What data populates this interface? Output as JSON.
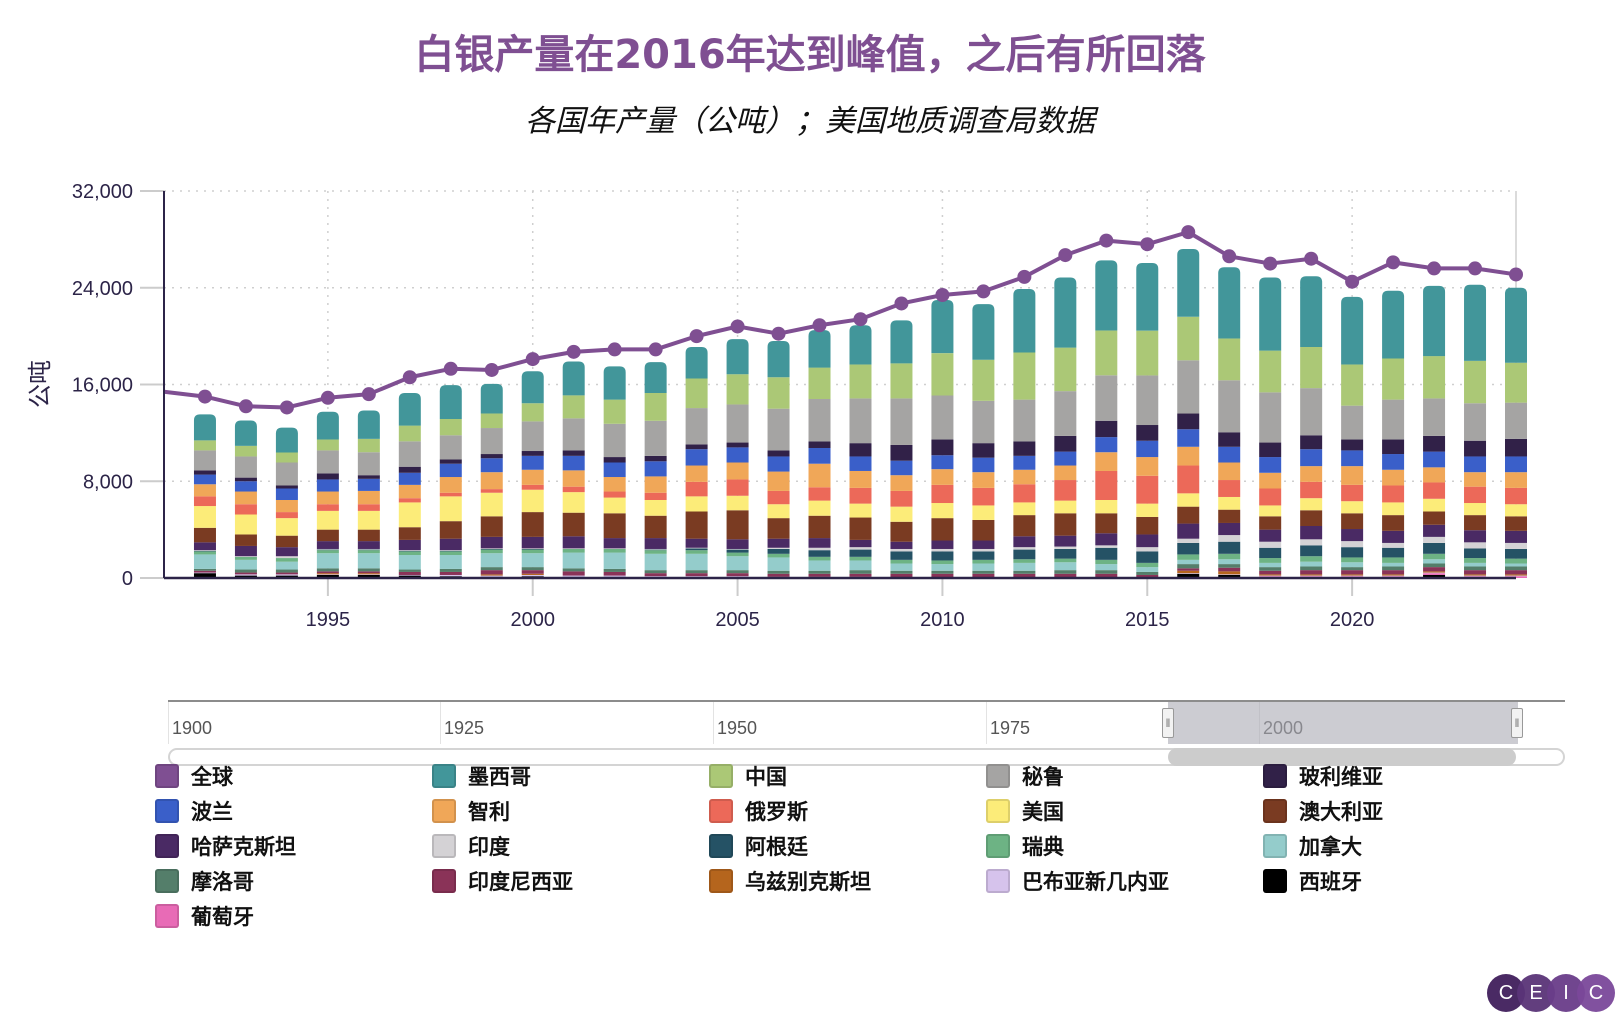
{
  "header": {
    "title": "白银产量在2016年达到峰值，之后有所回落",
    "subtitle": "各国年产量（公吨）；美国地质调查局数据"
  },
  "navigator": {
    "labels": [
      "1900",
      "1925",
      "1950",
      "1975",
      "2000"
    ],
    "range_start": "1991",
    "range_end": "2024"
  },
  "logo": {
    "letters": [
      "C",
      "E",
      "I",
      "C"
    ]
  },
  "chart_data": {
    "type": "bar",
    "stacked": true,
    "title": "白银产量在2016年达到峰值，之后有所回落",
    "subtitle": "各国年产量（公吨）；美国地质调查局数据",
    "xlabel": "",
    "ylabel": "公吨",
    "ylim": [
      0,
      32000
    ],
    "yticks": [
      0,
      8000,
      16000,
      24000,
      32000
    ],
    "ytick_labels": [
      "0",
      "8,000",
      "16,000",
      "24,000",
      "32,000"
    ],
    "xlim": [
      1991,
      2024
    ],
    "xticks": [
      1995,
      2000,
      2005,
      2010,
      2015,
      2020
    ],
    "xtick_labels": [
      "1995",
      "2000",
      "2005",
      "2010",
      "2015",
      "2020"
    ],
    "grid": true,
    "legend_position": "bottom",
    "categories": [
      1992,
      1993,
      1994,
      1995,
      1996,
      1997,
      1998,
      1999,
      2000,
      2001,
      2002,
      2003,
      2004,
      2005,
      2006,
      2007,
      2008,
      2009,
      2010,
      2011,
      2012,
      2013,
      2014,
      2015,
      2016,
      2017,
      2018,
      2019,
      2020,
      2021,
      2022,
      2023,
      2024
    ],
    "line_series": {
      "name": "全球",
      "color": "#7f4f92",
      "x": [
        1991,
        1992,
        1993,
        1994,
        1995,
        1996,
        1997,
        1998,
        1999,
        2000,
        2001,
        2002,
        2003,
        2004,
        2005,
        2006,
        2007,
        2008,
        2009,
        2010,
        2011,
        2012,
        2013,
        2014,
        2015,
        2016,
        2017,
        2018,
        2019,
        2020,
        2021,
        2022,
        2023,
        2024
      ],
      "values": [
        15400,
        15000,
        14200,
        14100,
        14900,
        15200,
        16600,
        17300,
        17200,
        18100,
        18700,
        18900,
        18900,
        20000,
        20800,
        20200,
        20900,
        21400,
        22700,
        23400,
        23700,
        24900,
        26700,
        27900,
        27600,
        28600,
        26600,
        26000,
        26400,
        24500,
        26100,
        25600,
        25600,
        25100
      ]
    },
    "series": [
      {
        "name": "西班牙",
        "color": "#000000",
        "values": [
          400,
          200,
          200,
          250,
          250,
          200,
          150,
          100,
          150,
          100,
          100,
          50,
          50,
          50,
          0,
          0,
          0,
          0,
          0,
          0,
          0,
          0,
          0,
          0,
          350,
          250,
          0,
          0,
          0,
          0,
          250,
          0,
          0
        ]
      },
      {
        "name": "葡萄牙",
        "color": "#e86bb6",
        "values": [
          0,
          0,
          0,
          0,
          0,
          0,
          0,
          0,
          0,
          0,
          0,
          0,
          0,
          0,
          0,
          0,
          0,
          0,
          0,
          0,
          0,
          0,
          0,
          0,
          0,
          0,
          150,
          150,
          150,
          150,
          150,
          150,
          150
        ]
      },
      {
        "name": "巴布亚新几内亚",
        "color": "#d6c3ec",
        "values": [
          50,
          100,
          100,
          50,
          50,
          50,
          100,
          100,
          100,
          100,
          100,
          100,
          100,
          100,
          100,
          100,
          100,
          50,
          50,
          50,
          50,
          50,
          50,
          50,
          50,
          50,
          50,
          50,
          50,
          50,
          50,
          50,
          50
        ]
      },
      {
        "name": "乌兹别克斯坦",
        "color": "#b5651d",
        "values": [
          0,
          0,
          0,
          100,
          100,
          0,
          0,
          100,
          100,
          0,
          0,
          0,
          0,
          0,
          0,
          0,
          0,
          0,
          0,
          0,
          0,
          0,
          0,
          0,
          200,
          250,
          100,
          100,
          100,
          100,
          100,
          100,
          100
        ]
      },
      {
        "name": "印度尼西亚",
        "color": "#8a3358",
        "values": [
          150,
          150,
          150,
          150,
          150,
          250,
          250,
          350,
          300,
          350,
          300,
          250,
          250,
          250,
          250,
          250,
          250,
          300,
          300,
          300,
          300,
          300,
          300,
          200,
          200,
          300,
          300,
          350,
          350,
          350,
          350,
          350,
          350
        ]
      },
      {
        "name": "摩洛哥",
        "color": "#547e6a",
        "values": [
          150,
          250,
          250,
          250,
          250,
          200,
          250,
          250,
          250,
          250,
          250,
          250,
          250,
          250,
          250,
          250,
          300,
          250,
          250,
          250,
          250,
          300,
          300,
          250,
          350,
          300,
          300,
          300,
          250,
          300,
          300,
          300,
          300
        ]
      },
      {
        "name": "加拿大",
        "color": "#94cccb",
        "values": [
          1200,
          800,
          650,
          1250,
          1250,
          1200,
          1150,
          1150,
          1150,
          1300,
          1350,
          1350,
          1350,
          1150,
          1100,
          850,
          800,
          600,
          550,
          600,
          650,
          650,
          500,
          400,
          350,
          400,
          350,
          400,
          400,
          300,
          350,
          300,
          250
        ]
      },
      {
        "name": "瑞典",
        "color": "#6db384",
        "values": [
          250,
          250,
          300,
          250,
          250,
          300,
          300,
          300,
          300,
          300,
          300,
          300,
          300,
          300,
          300,
          300,
          300,
          300,
          300,
          300,
          300,
          300,
          350,
          350,
          450,
          450,
          400,
          450,
          400,
          450,
          450,
          400,
          400
        ]
      },
      {
        "name": "阿根廷",
        "color": "#255265",
        "values": [
          50,
          0,
          0,
          50,
          50,
          50,
          50,
          50,
          50,
          0,
          0,
          50,
          150,
          250,
          400,
          550,
          600,
          700,
          750,
          700,
          800,
          800,
          1000,
          950,
          950,
          1000,
          850,
          900,
          850,
          800,
          900,
          800,
          800
        ]
      },
      {
        "name": "印度",
        "color": "#d4d2d5",
        "values": [
          50,
          50,
          150,
          50,
          50,
          50,
          50,
          50,
          50,
          50,
          50,
          50,
          50,
          50,
          100,
          200,
          200,
          200,
          200,
          200,
          200,
          200,
          200,
          350,
          350,
          550,
          500,
          500,
          500,
          400,
          500,
          500,
          500
        ]
      },
      {
        "name": "哈萨克斯坦",
        "color": "#4a2a64",
        "values": [
          650,
          850,
          750,
          650,
          650,
          850,
          950,
          950,
          950,
          1000,
          850,
          900,
          750,
          800,
          750,
          800,
          600,
          600,
          700,
          700,
          900,
          900,
          1000,
          1050,
          1250,
          1000,
          1000,
          1100,
          1000,
          1000,
          1000,
          1000,
          1000
        ]
      },
      {
        "name": "澳大利亚",
        "color": "#7a3b22",
        "values": [
          1200,
          950,
          950,
          950,
          950,
          1050,
          1450,
          1700,
          2050,
          1950,
          2050,
          1850,
          2250,
          2400,
          1700,
          1850,
          1850,
          1650,
          1850,
          1700,
          1750,
          1850,
          1650,
          1450,
          1400,
          1100,
          1100,
          1300,
          1300,
          1300,
          1100,
          1250,
          1200
        ]
      },
      {
        "name": "美国",
        "color": "#fcec79",
        "values": [
          1800,
          1650,
          1450,
          1550,
          1550,
          2050,
          2050,
          1950,
          1850,
          1700,
          1300,
          1300,
          1250,
          1200,
          1150,
          1250,
          1150,
          1250,
          1250,
          1200,
          1050,
          1050,
          1100,
          1100,
          1100,
          1050,
          900,
          1000,
          1000,
          1050,
          1050,
          1000,
          1000
        ]
      },
      {
        "name": "俄罗斯",
        "color": "#ec6959",
        "values": [
          800,
          850,
          500,
          550,
          550,
          350,
          300,
          300,
          400,
          450,
          500,
          600,
          1200,
          1350,
          1100,
          1100,
          1300,
          1300,
          1500,
          1450,
          1500,
          1700,
          2400,
          2300,
          2300,
          1400,
          1400,
          1350,
          1350,
          1400,
          1350,
          1350,
          1350
        ]
      },
      {
        "name": "智利",
        "color": "#f0a758",
        "values": [
          1000,
          1050,
          1000,
          1050,
          1100,
          1100,
          1300,
          1400,
          1250,
          1350,
          1200,
          1350,
          1350,
          1400,
          1600,
          1950,
          1400,
          1300,
          1300,
          1300,
          1200,
          1200,
          1550,
          1550,
          1550,
          1450,
          1300,
          1300,
          1550,
          1300,
          1250,
          1200,
          1300
        ]
      },
      {
        "name": "波兰",
        "color": "#3a5fc9",
        "values": [
          800,
          850,
          950,
          1000,
          1000,
          1000,
          1100,
          1150,
          1150,
          1200,
          1200,
          1250,
          1350,
          1250,
          1250,
          1300,
          1200,
          1200,
          1150,
          1200,
          1150,
          1150,
          1250,
          1350,
          1450,
          1300,
          1300,
          1400,
          1300,
          1300,
          1300,
          1300,
          1300
        ]
      },
      {
        "name": "玻利维亚",
        "color": "#312148",
        "values": [
          350,
          300,
          250,
          500,
          300,
          500,
          350,
          350,
          400,
          450,
          450,
          450,
          400,
          400,
          500,
          550,
          1100,
          1300,
          1300,
          1200,
          1200,
          1300,
          1350,
          1300,
          1300,
          1200,
          1200,
          1150,
          900,
          1200,
          1300,
          1300,
          1450
        ]
      },
      {
        "name": "秘鲁",
        "color": "#a5a4a3",
        "values": [
          1650,
          1750,
          1900,
          1900,
          1900,
          2100,
          2000,
          2150,
          2450,
          2650,
          2750,
          2900,
          3000,
          3150,
          3450,
          3500,
          3700,
          3850,
          3640,
          3500,
          3450,
          3700,
          3760,
          4100,
          4400,
          4300,
          4150,
          3900,
          2800,
          3300,
          3100,
          3100,
          3000
        ]
      },
      {
        "name": "中国",
        "color": "#abc876",
        "values": [
          830,
          870,
          830,
          900,
          1100,
          1300,
          1350,
          1200,
          1500,
          1900,
          2000,
          2300,
          2450,
          2500,
          2600,
          2600,
          2800,
          2900,
          3500,
          3400,
          3900,
          3600,
          3700,
          3700,
          3600,
          3450,
          3450,
          3400,
          3400,
          3400,
          3500,
          3500,
          3300
        ]
      },
      {
        "name": "墨西哥",
        "color": "#42969a",
        "values": [
          2150,
          2100,
          2050,
          2300,
          2350,
          2700,
          2800,
          2450,
          2650,
          2800,
          2750,
          2550,
          2600,
          2900,
          3000,
          3100,
          3250,
          3550,
          4400,
          4600,
          5250,
          5800,
          5800,
          5600,
          5600,
          5900,
          6050,
          5850,
          5600,
          5600,
          5800,
          6300,
          6200
        ]
      }
    ]
  },
  "legend": [
    {
      "name": "全球",
      "color": "#7f4f92"
    },
    {
      "name": "墨西哥",
      "color": "#42969a"
    },
    {
      "name": "中国",
      "color": "#abc876"
    },
    {
      "name": "秘鲁",
      "color": "#a5a4a3"
    },
    {
      "name": "玻利维亚",
      "color": "#312148"
    },
    {
      "name": "波兰",
      "color": "#3a5fc9"
    },
    {
      "name": "智利",
      "color": "#f0a758"
    },
    {
      "name": "俄罗斯",
      "color": "#ec6959"
    },
    {
      "name": "美国",
      "color": "#fcec79"
    },
    {
      "name": "澳大利亚",
      "color": "#7a3b22"
    },
    {
      "name": "哈萨克斯坦",
      "color": "#4a2a64"
    },
    {
      "name": "印度",
      "color": "#d4d2d5"
    },
    {
      "name": "阿根廷",
      "color": "#255265"
    },
    {
      "name": "瑞典",
      "color": "#6db384"
    },
    {
      "name": "加拿大",
      "color": "#94cccb"
    },
    {
      "name": "摩洛哥",
      "color": "#547e6a"
    },
    {
      "name": "印度尼西亚",
      "color": "#8a3358"
    },
    {
      "name": "乌兹别克斯坦",
      "color": "#b5651d"
    },
    {
      "name": "巴布亚新几内亚",
      "color": "#d6c3ec"
    },
    {
      "name": "西班牙",
      "color": "#000000"
    },
    {
      "name": "葡萄牙",
      "color": "#e86bb6"
    }
  ]
}
